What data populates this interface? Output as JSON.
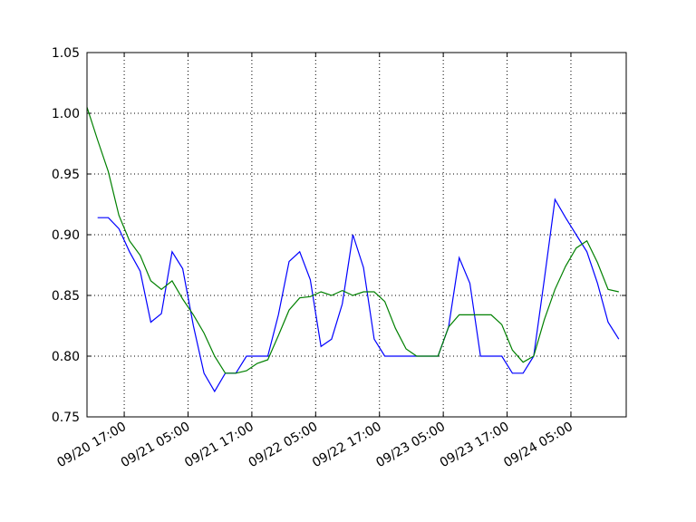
{
  "chart_data": {
    "type": "line",
    "x": [
      "09/20 10:00",
      "09/20 12:00",
      "09/20 14:00",
      "09/20 16:00",
      "09/20 18:00",
      "09/20 20:00",
      "09/20 22:00",
      "09/21 00:00",
      "09/21 02:00",
      "09/21 04:00",
      "09/21 06:00",
      "09/21 08:00",
      "09/21 10:00",
      "09/21 12:00",
      "09/21 14:00",
      "09/21 16:00",
      "09/21 18:00",
      "09/21 20:00",
      "09/21 22:00",
      "09/22 00:00",
      "09/22 02:00",
      "09/22 04:00",
      "09/22 06:00",
      "09/22 08:00",
      "09/22 10:00",
      "09/22 12:00",
      "09/22 14:00",
      "09/22 16:00",
      "09/22 18:00",
      "09/22 20:00",
      "09/22 22:00",
      "09/23 00:00",
      "09/23 02:00",
      "09/23 04:00",
      "09/23 06:00",
      "09/23 08:00",
      "09/23 10:00",
      "09/23 12:00",
      "09/23 14:00",
      "09/23 16:00",
      "09/23 18:00",
      "09/23 20:00",
      "09/23 22:00",
      "09/24 00:00",
      "09/24 02:00",
      "09/24 04:00",
      "09/24 06:00",
      "09/24 08:00",
      "09/24 10:00",
      "09/24 12:00",
      "09/24 14:00"
    ],
    "series": [
      {
        "color": "#0000ff",
        "values": [
          null,
          0.914,
          0.914,
          0.905,
          0.886,
          0.87,
          0.828,
          0.835,
          0.886,
          0.872,
          0.825,
          0.786,
          0.771,
          0.786,
          0.786,
          0.8,
          0.8,
          0.8,
          0.834,
          0.878,
          0.886,
          0.863,
          0.808,
          0.814,
          0.843,
          0.9,
          0.873,
          0.814,
          0.8,
          0.8,
          0.8,
          0.8,
          0.8,
          0.8,
          0.824,
          0.881,
          0.86,
          0.8,
          0.8,
          0.8,
          0.786,
          0.786,
          0.8,
          0.863,
          0.929,
          0.914,
          0.9,
          0.886,
          0.86,
          0.828,
          0.814
        ]
      },
      {
        "color": "#008000",
        "values": [
          1.005,
          0.978,
          0.952,
          0.916,
          0.895,
          0.883,
          0.862,
          0.855,
          0.862,
          0.847,
          0.834,
          0.819,
          0.8,
          0.786,
          0.786,
          0.788,
          0.794,
          0.797,
          0.817,
          0.838,
          0.848,
          0.849,
          0.853,
          0.85,
          0.854,
          0.85,
          0.853,
          0.853,
          0.845,
          0.823,
          0.806,
          0.8,
          0.8,
          0.8,
          0.824,
          0.834,
          0.834,
          0.834,
          0.834,
          0.826,
          0.805,
          0.795,
          0.8,
          0.83,
          0.855,
          0.874,
          0.889,
          0.895,
          0.877,
          0.855,
          0.853
        ]
      }
    ],
    "xlim": [
      "09/20 10:00",
      "09/24 15:24"
    ],
    "xticks": [
      "09/20 17:00",
      "09/21 05:00",
      "09/21 17:00",
      "09/22 05:00",
      "09/22 17:00",
      "09/23 05:00",
      "09/23 17:00",
      "09/24 05:00"
    ],
    "ylim": [
      0.75,
      1.05
    ],
    "yticks": [
      0.75,
      {
        "value": 0.8,
        "label": "0.80"
      },
      0.85,
      {
        "value": 0.9,
        "label": "0.90"
      },
      0.95,
      {
        "value": 1.0,
        "label": "1.00"
      },
      1.05
    ],
    "grid": true
  }
}
